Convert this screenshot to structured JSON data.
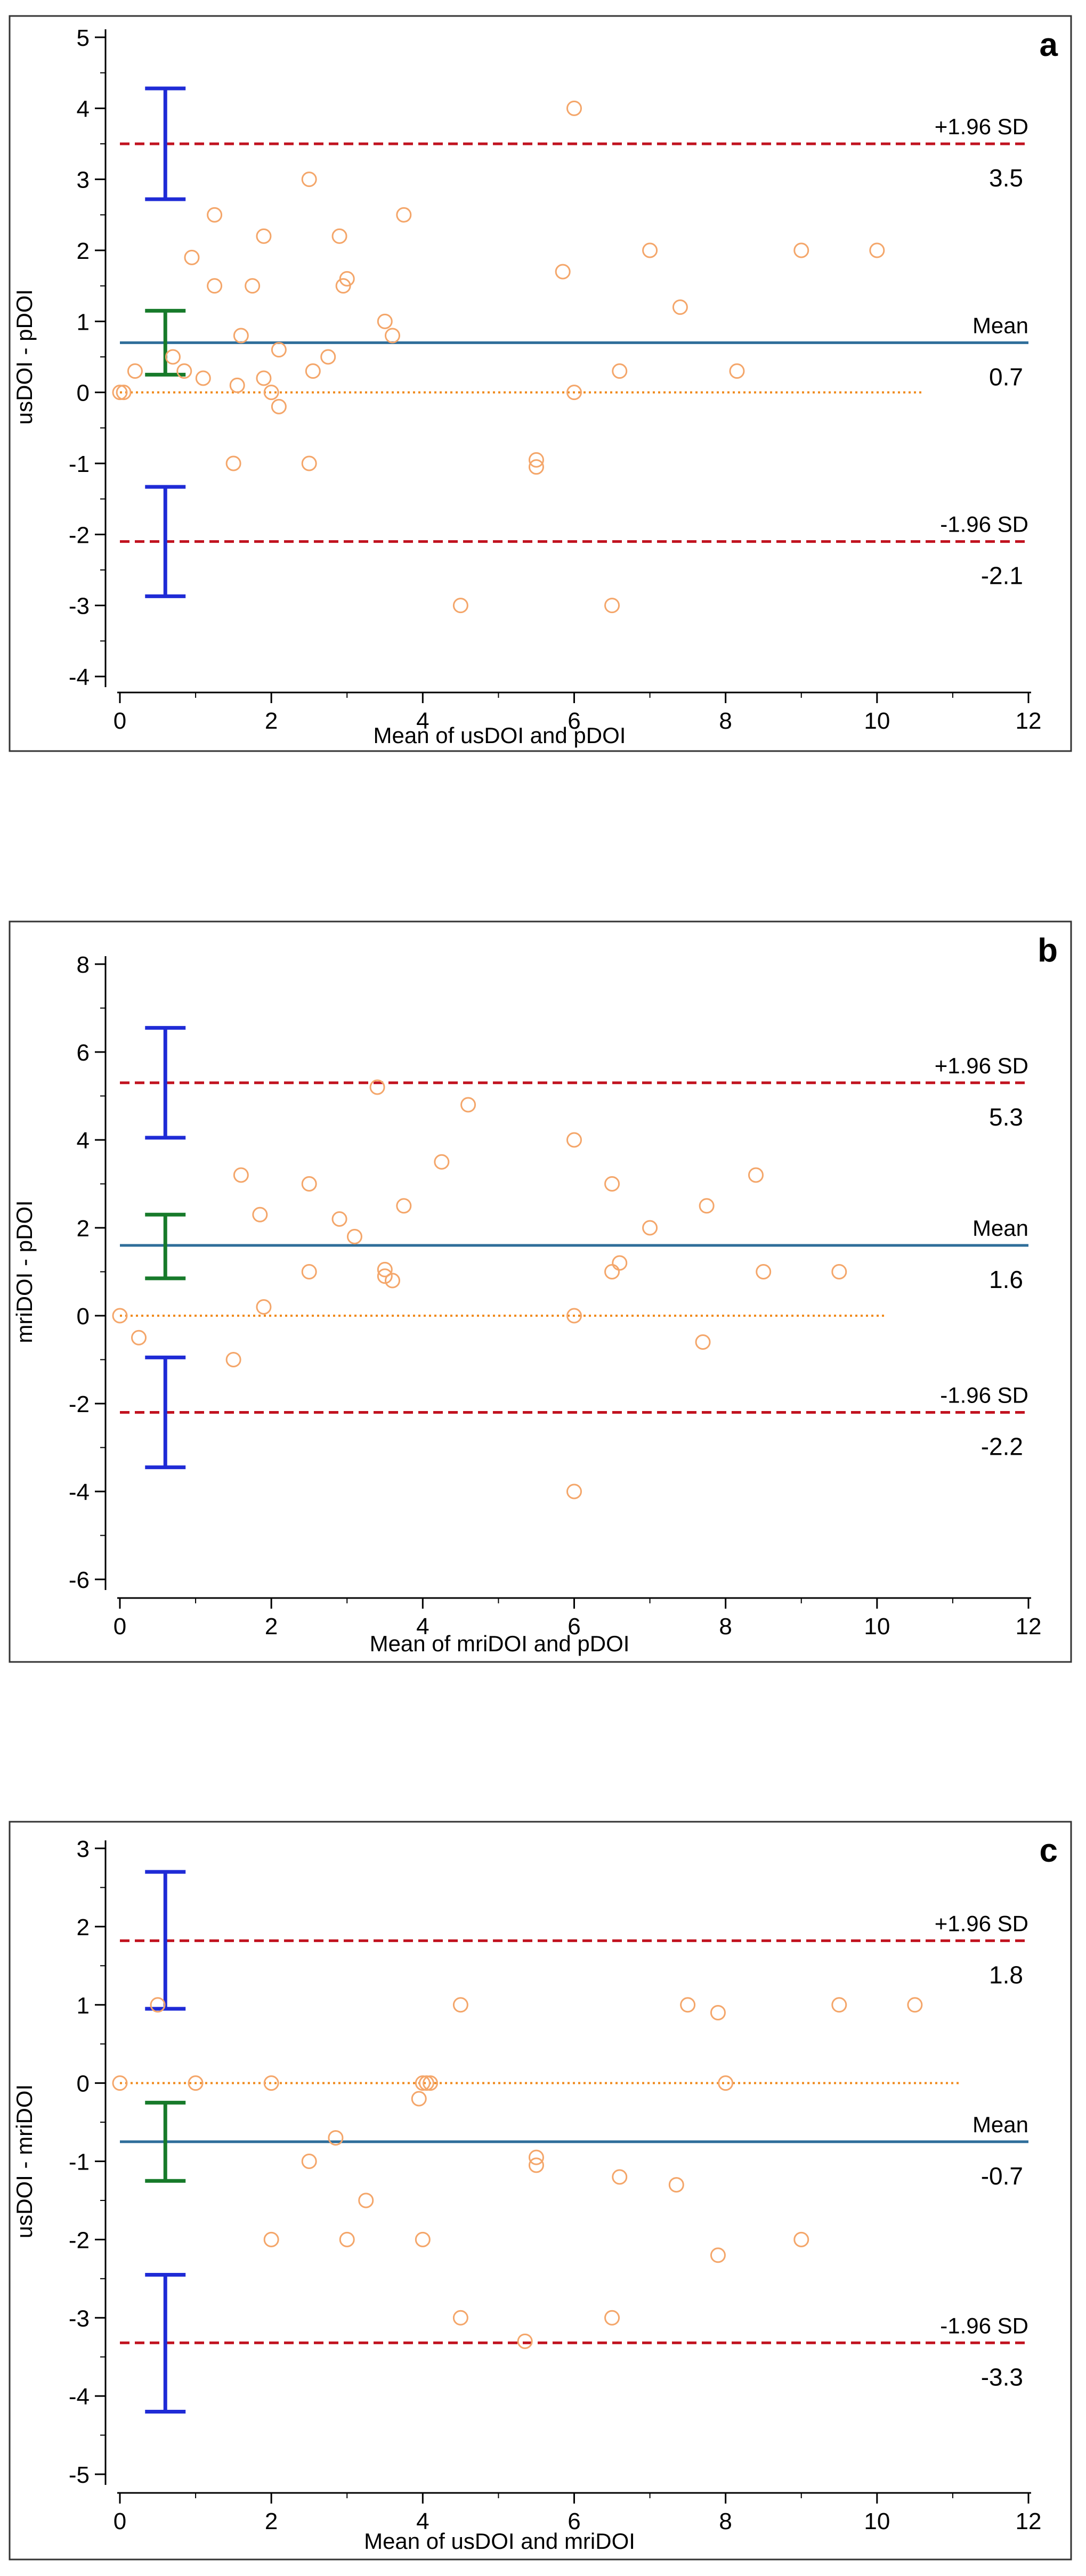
{
  "chart_data": [
    {
      "type": "scatter",
      "panel_label": "a",
      "xlabel": "Mean of usDOI and pDOI",
      "ylabel": "usDOI - pDOI",
      "xlim": [
        0,
        12
      ],
      "ylim": [
        -4,
        5
      ],
      "xticks": [
        "0",
        "2",
        "4",
        "6",
        "8",
        "10",
        "12"
      ],
      "yticks": [
        "-4",
        "-3",
        "-2",
        "-1",
        "0",
        "1",
        "2",
        "3",
        "4",
        "5"
      ],
      "mean_line": {
        "value": 0.7,
        "label": "Mean",
        "value_label": "0.7"
      },
      "upper_loa": {
        "value": 3.5,
        "label": "+1.96 SD",
        "value_label": "3.5"
      },
      "lower_loa": {
        "value": -2.1,
        "label": "-1.96 SD",
        "value_label": "-2.1"
      },
      "zero_line_end": 10.6,
      "ci_x": 0.6,
      "ci_upper": [
        2.72,
        4.28
      ],
      "ci_mean": [
        0.25,
        1.15
      ],
      "ci_lower": [
        -2.87,
        -1.33
      ],
      "points": [
        [
          0,
          0
        ],
        [
          0.05,
          0
        ],
        [
          0.2,
          0.3
        ],
        [
          0.7,
          0.5
        ],
        [
          0.85,
          0.3
        ],
        [
          0.95,
          1.9
        ],
        [
          1.1,
          0.2
        ],
        [
          1.25,
          2.5
        ],
        [
          1.25,
          1.5
        ],
        [
          1.5,
          -1
        ],
        [
          1.55,
          0.1
        ],
        [
          1.6,
          0.8
        ],
        [
          1.75,
          1.5
        ],
        [
          1.9,
          0.2
        ],
        [
          1.9,
          2.2
        ],
        [
          2.0,
          0
        ],
        [
          2.1,
          0.6
        ],
        [
          2.1,
          -0.2
        ],
        [
          2.5,
          3
        ],
        [
          2.5,
          -1
        ],
        [
          2.55,
          0.3
        ],
        [
          2.75,
          0.5
        ],
        [
          2.9,
          2.2
        ],
        [
          2.95,
          1.5
        ],
        [
          3.0,
          1.6
        ],
        [
          3.5,
          1.0
        ],
        [
          3.6,
          0.8
        ],
        [
          3.75,
          2.5
        ],
        [
          4.5,
          -3
        ],
        [
          5.5,
          -0.95
        ],
        [
          5.5,
          -1.05
        ],
        [
          5.85,
          1.7
        ],
        [
          6.0,
          4
        ],
        [
          6.0,
          0
        ],
        [
          6.5,
          -3
        ],
        [
          6.6,
          0.3
        ],
        [
          7.0,
          2
        ],
        [
          7.4,
          1.2
        ],
        [
          8.15,
          0.3
        ],
        [
          9.0,
          2
        ],
        [
          10.0,
          2
        ]
      ]
    },
    {
      "type": "scatter",
      "panel_label": "b",
      "xlabel": "Mean of mriDOI and pDOI",
      "ylabel": "mriDOI - pDOI",
      "xlim": [
        0,
        12
      ],
      "ylim": [
        -6,
        8
      ],
      "xticks": [
        "0",
        "2",
        "4",
        "6",
        "8",
        "10",
        "12"
      ],
      "yticks": [
        "-6",
        "-4",
        "-2",
        "0",
        "2",
        "4",
        "6",
        "8"
      ],
      "mean_line": {
        "value": 1.6,
        "label": "Mean",
        "value_label": "1.6"
      },
      "upper_loa": {
        "value": 5.3,
        "label": "+1.96 SD",
        "value_label": "5.3"
      },
      "lower_loa": {
        "value": -2.2,
        "label": "-1.96 SD",
        "value_label": "-2.2"
      },
      "zero_line_end": 10.1,
      "ci_x": 0.6,
      "ci_upper": [
        4.05,
        6.55
      ],
      "ci_mean": [
        0.85,
        2.3
      ],
      "ci_lower": [
        -3.45,
        -0.95
      ],
      "points": [
        [
          0,
          0
        ],
        [
          0.25,
          -0.5
        ],
        [
          1.5,
          -1
        ],
        [
          1.6,
          3.2
        ],
        [
          1.85,
          2.3
        ],
        [
          1.9,
          0.2
        ],
        [
          2.5,
          3
        ],
        [
          2.5,
          1
        ],
        [
          2.9,
          2.2
        ],
        [
          3.1,
          1.8
        ],
        [
          3.4,
          5.2
        ],
        [
          3.5,
          1.05
        ],
        [
          3.5,
          0.9
        ],
        [
          3.6,
          0.8
        ],
        [
          3.75,
          2.5
        ],
        [
          4.25,
          3.5
        ],
        [
          4.6,
          4.8
        ],
        [
          6.0,
          4
        ],
        [
          6.0,
          0
        ],
        [
          6.0,
          -4
        ],
        [
          6.5,
          3
        ],
        [
          6.5,
          1
        ],
        [
          6.6,
          1.2
        ],
        [
          7.0,
          2
        ],
        [
          7.7,
          -0.6
        ],
        [
          7.75,
          2.5
        ],
        [
          8.4,
          3.2
        ],
        [
          8.5,
          1
        ],
        [
          9.5,
          1
        ]
      ]
    },
    {
      "type": "scatter",
      "panel_label": "c",
      "xlabel": "Mean of usDOI and mriDOI",
      "ylabel": "usDOI - mriDOI",
      "xlim": [
        0,
        12
      ],
      "ylim": [
        -5,
        3
      ],
      "xticks": [
        "0",
        "2",
        "4",
        "6",
        "8",
        "10",
        "12"
      ],
      "yticks": [
        "-5",
        "-4",
        "-3",
        "-2",
        "-1",
        "0",
        "1",
        "2",
        "3"
      ],
      "mean_line": {
        "value": -0.75,
        "label": "Mean",
        "value_label": "-0.7"
      },
      "upper_loa": {
        "value": 1.82,
        "label": "+1.96 SD",
        "value_label": "1.8"
      },
      "lower_loa": {
        "value": -3.32,
        "label": "-1.96 SD",
        "value_label": "-3.3"
      },
      "zero_line_end": 11.1,
      "ci_x": 0.6,
      "ci_upper": [
        0.95,
        2.7
      ],
      "ci_mean": [
        -1.25,
        -0.25
      ],
      "ci_lower": [
        -4.2,
        -2.45
      ],
      "points": [
        [
          0,
          0
        ],
        [
          0.5,
          1
        ],
        [
          1.0,
          0
        ],
        [
          2.0,
          0
        ],
        [
          2.0,
          -2
        ],
        [
          2.5,
          -1
        ],
        [
          2.85,
          -0.7
        ],
        [
          3.0,
          -2
        ],
        [
          3.25,
          -1.5
        ],
        [
          3.95,
          -0.2
        ],
        [
          4.0,
          0
        ],
        [
          4.05,
          0
        ],
        [
          4.1,
          0
        ],
        [
          4.0,
          -2
        ],
        [
          4.5,
          1
        ],
        [
          4.5,
          -3
        ],
        [
          5.35,
          -3.3
        ],
        [
          5.5,
          -0.95
        ],
        [
          5.5,
          -1.05
        ],
        [
          6.5,
          -3
        ],
        [
          6.6,
          -1.2
        ],
        [
          7.35,
          -1.3
        ],
        [
          7.5,
          1
        ],
        [
          7.9,
          0.9
        ],
        [
          7.9,
          -2.2
        ],
        [
          8.0,
          0
        ],
        [
          9.0,
          -2
        ],
        [
          9.5,
          1
        ],
        [
          10.5,
          1
        ]
      ]
    }
  ],
  "colors": {
    "points": "#f4a66a",
    "mean_line": "#2f6e9a",
    "loa_line": "#c1121f",
    "zero_line": "#f08a1c",
    "ci_upper_lower": "#1f2bd6",
    "ci_mean": "#177a2a",
    "axis": "#000000",
    "frame": "#333333"
  }
}
